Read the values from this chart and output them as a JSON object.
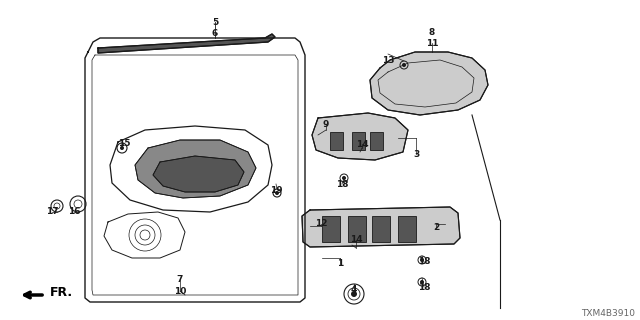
{
  "diagram_code": "TXM4B3910",
  "bg_color": "#ffffff",
  "line_color": "#1a1a1a",
  "labels": [
    [
      215,
      22,
      "5"
    ],
    [
      215,
      33,
      "6"
    ],
    [
      124,
      143,
      "15"
    ],
    [
      52,
      212,
      "17"
    ],
    [
      74,
      212,
      "16"
    ],
    [
      180,
      280,
      "7"
    ],
    [
      180,
      291,
      "10"
    ],
    [
      276,
      190,
      "19"
    ],
    [
      432,
      32,
      "8"
    ],
    [
      432,
      43,
      "11"
    ],
    [
      388,
      60,
      "13"
    ],
    [
      326,
      124,
      "9"
    ],
    [
      362,
      144,
      "14"
    ],
    [
      416,
      154,
      "3"
    ],
    [
      342,
      184,
      "18"
    ],
    [
      321,
      224,
      "12"
    ],
    [
      356,
      240,
      "14"
    ],
    [
      436,
      228,
      "2"
    ],
    [
      340,
      264,
      "1"
    ],
    [
      424,
      262,
      "18"
    ],
    [
      354,
      290,
      "4"
    ],
    [
      424,
      287,
      "18"
    ]
  ],
  "strip_color": "#444444",
  "dark_fill": "#555555",
  "mid_fill": "#888888",
  "light_fill": "#cccccc"
}
